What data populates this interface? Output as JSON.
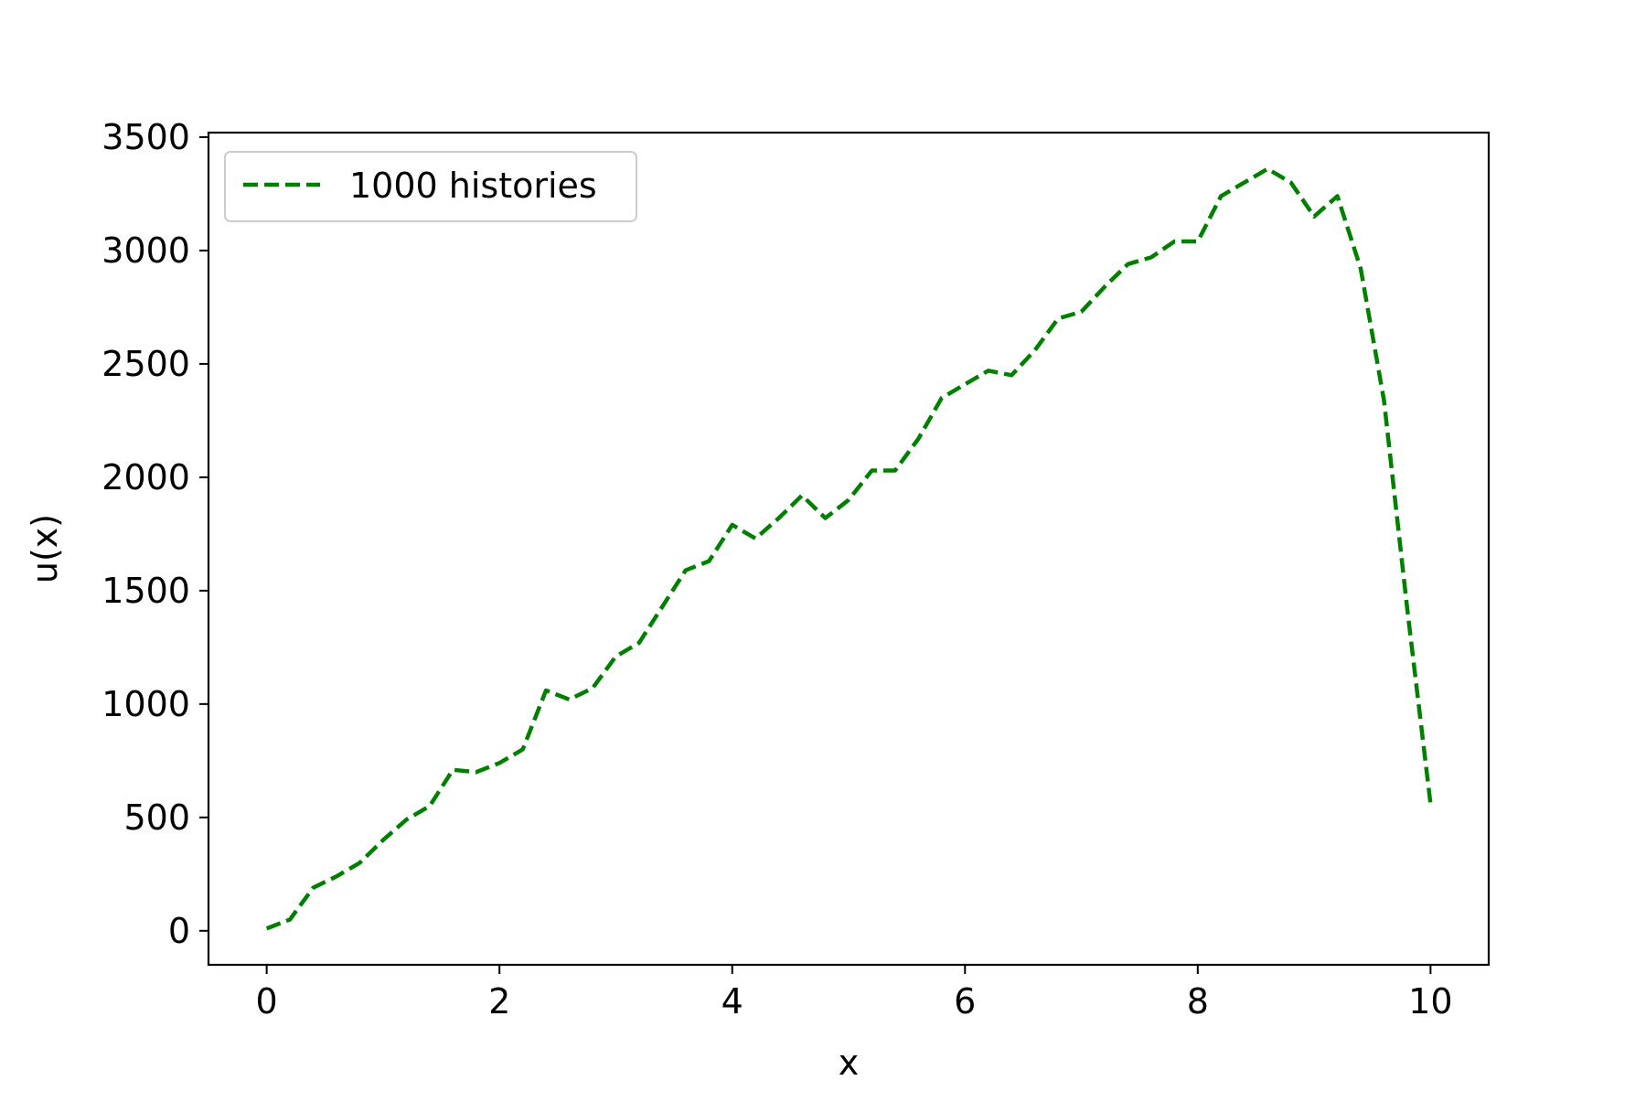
{
  "chart_data": {
    "type": "line",
    "title": "",
    "xlabel": "x",
    "ylabel": "u(x)",
    "xlim": [
      -0.5,
      10.5
    ],
    "ylim": [
      -150,
      3520
    ],
    "xticks": [
      0,
      2,
      4,
      6,
      8,
      10
    ],
    "xtick_labels": [
      "0",
      "2",
      "4",
      "6",
      "8",
      "10"
    ],
    "yticks": [
      0,
      500,
      1000,
      1500,
      2000,
      2500,
      3000,
      3500
    ],
    "ytick_labels": [
      "0",
      "500",
      "1000",
      "1500",
      "2000",
      "2500",
      "3000",
      "3500"
    ],
    "grid": false,
    "legend_position": "upper-left",
    "series": [
      {
        "name": "1000 histories",
        "color": "#008000",
        "line_style": "dashed",
        "x": [
          0.0,
          0.2,
          0.4,
          0.6,
          0.8,
          1.0,
          1.2,
          1.4,
          1.6,
          1.8,
          2.0,
          2.2,
          2.4,
          2.6,
          2.8,
          3.0,
          3.2,
          3.4,
          3.6,
          3.8,
          4.0,
          4.2,
          4.4,
          4.6,
          4.8,
          5.0,
          5.2,
          5.4,
          5.6,
          5.8,
          6.0,
          6.2,
          6.4,
          6.6,
          6.8,
          7.0,
          7.2,
          7.4,
          7.6,
          7.8,
          8.0,
          8.2,
          8.4,
          8.6,
          8.8,
          9.0,
          9.2,
          9.4,
          9.6,
          9.8,
          10.0
        ],
        "y": [
          10,
          50,
          190,
          240,
          300,
          400,
          490,
          550,
          710,
          700,
          740,
          800,
          1060,
          1020,
          1070,
          1210,
          1270,
          1430,
          1590,
          1630,
          1790,
          1730,
          1820,
          1920,
          1820,
          1900,
          2030,
          2030,
          2170,
          2350,
          2410,
          2470,
          2450,
          2560,
          2700,
          2730,
          2840,
          2940,
          2970,
          3040,
          3040,
          3240,
          3300,
          3360,
          3300,
          3150,
          3240,
          2920,
          2340,
          1420,
          560
        ]
      }
    ]
  },
  "legend": {
    "entries": [
      "1000 histories"
    ]
  }
}
